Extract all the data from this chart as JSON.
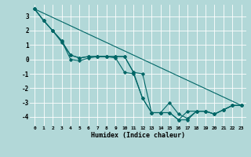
{
  "xlabel": "Humidex (Indice chaleur)",
  "bg_color": "#b2d8d8",
  "grid_color": "#ffffff",
  "line_color": "#006666",
  "xlim": [
    -0.5,
    23.5
  ],
  "ylim": [
    -4.6,
    3.8
  ],
  "yticks": [
    -4,
    -3,
    -2,
    -1,
    0,
    1,
    2,
    3
  ],
  "xticks": [
    0,
    1,
    2,
    3,
    4,
    5,
    6,
    7,
    8,
    9,
    10,
    11,
    12,
    13,
    14,
    15,
    16,
    17,
    18,
    19,
    20,
    21,
    22,
    23
  ],
  "series": [
    [
      3.5,
      2.7,
      2.0,
      1.3,
      0.0,
      -0.1,
      0.1,
      0.2,
      0.2,
      0.1,
      -0.9,
      -1.0,
      -2.7,
      -3.7,
      -3.7,
      -3.0,
      -3.8,
      -4.1,
      -3.6,
      -3.6,
      -3.8,
      -3.5,
      -3.2,
      -3.2
    ],
    [
      3.5,
      2.7,
      2.0,
      1.3,
      0.3,
      0.1,
      0.2,
      0.2,
      0.2,
      0.2,
      0.2,
      -0.9,
      -1.0,
      -3.7,
      -3.7,
      -3.7,
      -4.2,
      -3.6,
      -3.6,
      -3.6,
      -3.8,
      -3.5,
      -3.2,
      -3.2
    ],
    [
      3.5,
      2.7,
      2.0,
      1.2,
      0.3,
      0.1,
      0.2,
      0.2,
      0.2,
      0.2,
      0.2,
      -0.9,
      -2.7,
      -3.7,
      -3.7,
      -3.7,
      -4.2,
      -4.2,
      -3.6,
      -3.6,
      -3.8,
      -3.5,
      -3.2,
      -3.2
    ]
  ],
  "straight_line": [
    [
      0,
      23
    ],
    [
      3.5,
      -3.2
    ]
  ]
}
